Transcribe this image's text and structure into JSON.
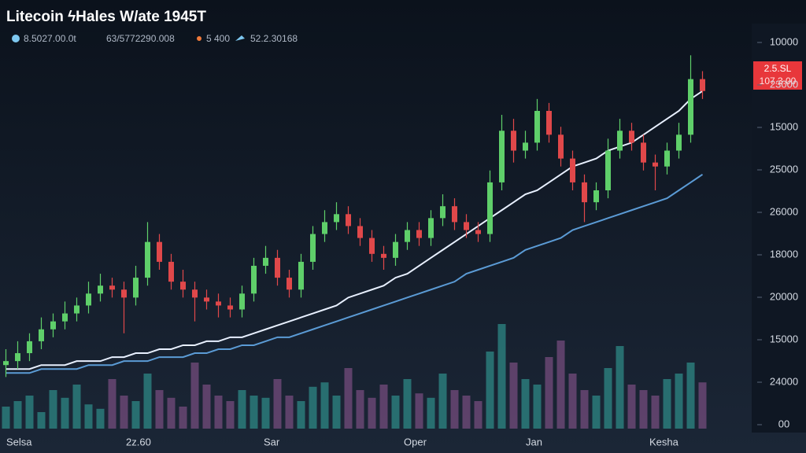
{
  "chart_data": {
    "type": "candlestick",
    "title": "Litecoin ϟHales W/ate 1945T",
    "legend": [
      "8.5027.00.0t",
      "63/5772290.008",
      "5 400",
      "52.2.30168"
    ],
    "price_badge": [
      "2.5.SL",
      "107.3.00"
    ],
    "x_labels": [
      "Selsa",
      "2z.60",
      "Sar",
      "Oper",
      "Jan",
      "Kesha"
    ],
    "y_axis_labels": [
      "10000",
      "23000",
      "15000",
      "25000",
      "26000",
      "18000",
      "20000",
      "15000",
      "24000",
      "00"
    ],
    "ylim": [
      0,
      100
    ],
    "volume_lim": [
      0,
      100
    ],
    "up_color": "#5fcf6a",
    "down_color": "#e0484a",
    "open": [
      16,
      17,
      19,
      22,
      25,
      27,
      29,
      31,
      34,
      36,
      35,
      33,
      38,
      47,
      42,
      37,
      35,
      33,
      32,
      31,
      30,
      34,
      41,
      43,
      38,
      35,
      42,
      49,
      52,
      54,
      51,
      48,
      44,
      43,
      47,
      50,
      48,
      53,
      56,
      52,
      50,
      49,
      62,
      75,
      70,
      72,
      80,
      74,
      68,
      62,
      57,
      60,
      70,
      75,
      72,
      67,
      66,
      70,
      74,
      88
    ],
    "high": [
      20,
      22,
      24,
      28,
      29,
      32,
      33,
      37,
      39,
      38,
      37,
      41,
      52,
      49,
      44,
      40,
      37,
      35,
      34,
      33,
      36,
      43,
      46,
      45,
      40,
      44,
      51,
      55,
      57,
      56,
      53,
      50,
      46,
      49,
      52,
      52,
      55,
      59,
      58,
      54,
      52,
      65,
      79,
      78,
      75,
      83,
      82,
      76,
      70,
      64,
      62,
      73,
      78,
      77,
      74,
      69,
      72,
      77,
      94,
      90
    ],
    "low": [
      13,
      15,
      17,
      20,
      23,
      25,
      27,
      29,
      32,
      33,
      24,
      31,
      36,
      40,
      35,
      33,
      27,
      30,
      28,
      28,
      28,
      32,
      39,
      36,
      33,
      33,
      40,
      47,
      50,
      49,
      46,
      42,
      40,
      41,
      45,
      46,
      46,
      51,
      50,
      48,
      47,
      47,
      60,
      67,
      68,
      70,
      72,
      66,
      60,
      52,
      55,
      58,
      68,
      70,
      65,
      60,
      64,
      68,
      72,
      83
    ],
    "close": [
      17,
      19,
      22,
      25,
      27,
      29,
      31,
      34,
      36,
      35,
      33,
      38,
      47,
      42,
      37,
      35,
      33,
      32,
      31,
      30,
      34,
      41,
      43,
      38,
      35,
      42,
      49,
      52,
      54,
      51,
      48,
      44,
      43,
      47,
      50,
      48,
      53,
      56,
      52,
      50,
      49,
      62,
      75,
      70,
      72,
      80,
      74,
      68,
      62,
      57,
      60,
      70,
      75,
      72,
      67,
      66,
      70,
      74,
      88,
      85
    ],
    "volume": [
      20,
      25,
      30,
      15,
      35,
      28,
      40,
      22,
      18,
      45,
      30,
      25,
      50,
      35,
      28,
      20,
      60,
      40,
      30,
      25,
      35,
      30,
      28,
      45,
      30,
      25,
      38,
      42,
      30,
      55,
      35,
      28,
      40,
      30,
      45,
      32,
      28,
      50,
      35,
      30,
      25,
      70,
      95,
      60,
      45,
      40,
      65,
      80,
      50,
      35,
      30,
      55,
      75,
      40,
      35,
      30,
      45,
      50,
      60,
      42
    ],
    "moving_averages": [
      {
        "color": "#e8f0ff",
        "values": [
          15,
          15,
          15,
          16,
          16,
          16,
          17,
          17,
          17,
          18,
          18,
          19,
          19,
          20,
          20,
          21,
          21,
          22,
          22,
          23,
          23,
          24,
          25,
          26,
          27,
          28,
          29,
          30,
          31,
          33,
          34,
          35,
          36,
          38,
          39,
          41,
          43,
          45,
          47,
          49,
          51,
          53,
          55,
          57,
          59,
          60,
          62,
          64,
          66,
          67,
          68,
          70,
          71,
          72,
          74,
          76,
          78,
          80,
          83,
          85
        ]
      },
      {
        "color": "#5b9bd5",
        "values": [
          14,
          14,
          14,
          15,
          15,
          15,
          15,
          16,
          16,
          16,
          17,
          17,
          17,
          18,
          18,
          18,
          19,
          19,
          20,
          20,
          21,
          21,
          22,
          23,
          23,
          24,
          25,
          26,
          27,
          28,
          29,
          30,
          31,
          32,
          33,
          34,
          35,
          36,
          37,
          39,
          40,
          41,
          42,
          43,
          45,
          46,
          47,
          48,
          50,
          51,
          52,
          53,
          54,
          55,
          56,
          57,
          58,
          60,
          62,
          64
        ]
      }
    ]
  }
}
